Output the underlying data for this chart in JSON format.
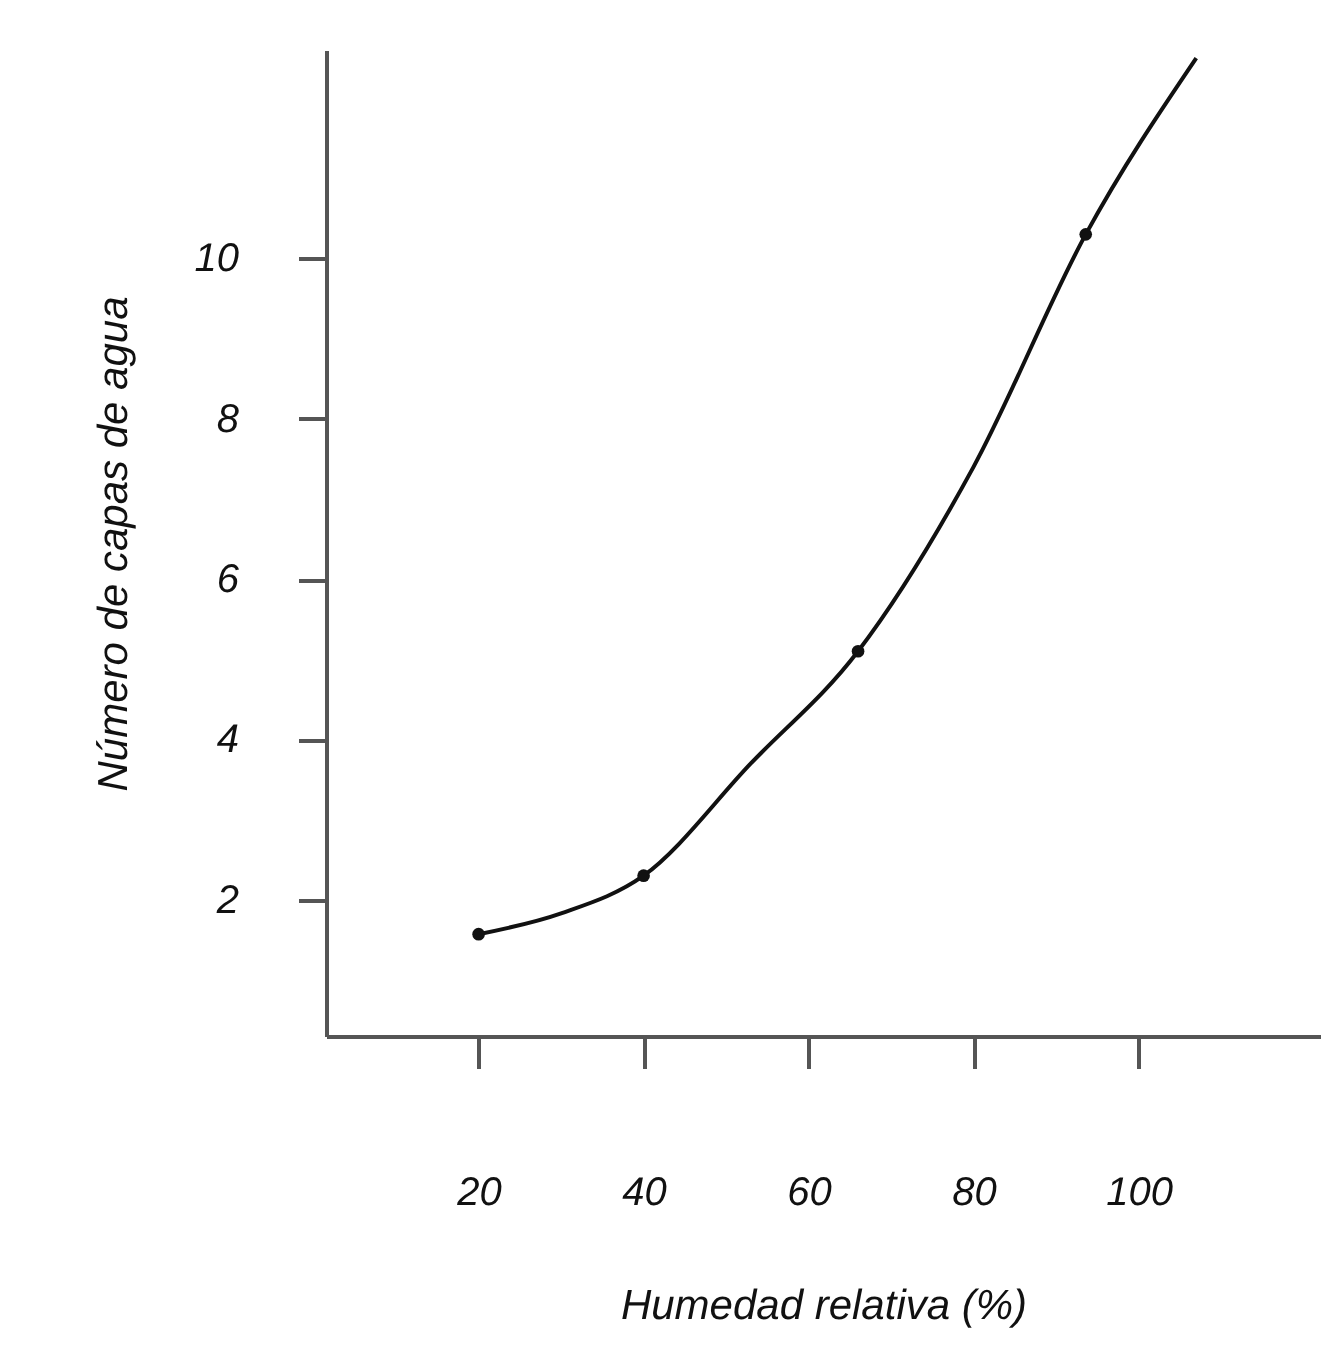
{
  "chart_data": {
    "type": "line",
    "xlabel": "Humedad relativa (%)",
    "ylabel": "Número de capas de agua",
    "series": [
      {
        "color": "#111111",
        "marker": "none",
        "line_style": "solid",
        "x": [
          20,
          30,
          40,
          53,
          66,
          80,
          93.6,
          107
        ],
        "values": [
          1.57,
          1.83,
          2.3,
          3.7,
          5.1,
          7.4,
          10.3,
          12.5
        ]
      },
      {
        "type": "scatter",
        "color": "#111111",
        "marker": "circle",
        "x": [
          20,
          40,
          66,
          93.6
        ],
        "values": [
          1.57,
          2.3,
          5.1,
          10.3
        ]
      }
    ],
    "xlim": [
      1.5,
      122
    ],
    "ylim": [
      0.3,
      12.6
    ],
    "xticks": [
      20,
      40,
      60,
      80,
      100
    ],
    "yticks": [
      2,
      4,
      6,
      8,
      10
    ],
    "grid": false
  }
}
